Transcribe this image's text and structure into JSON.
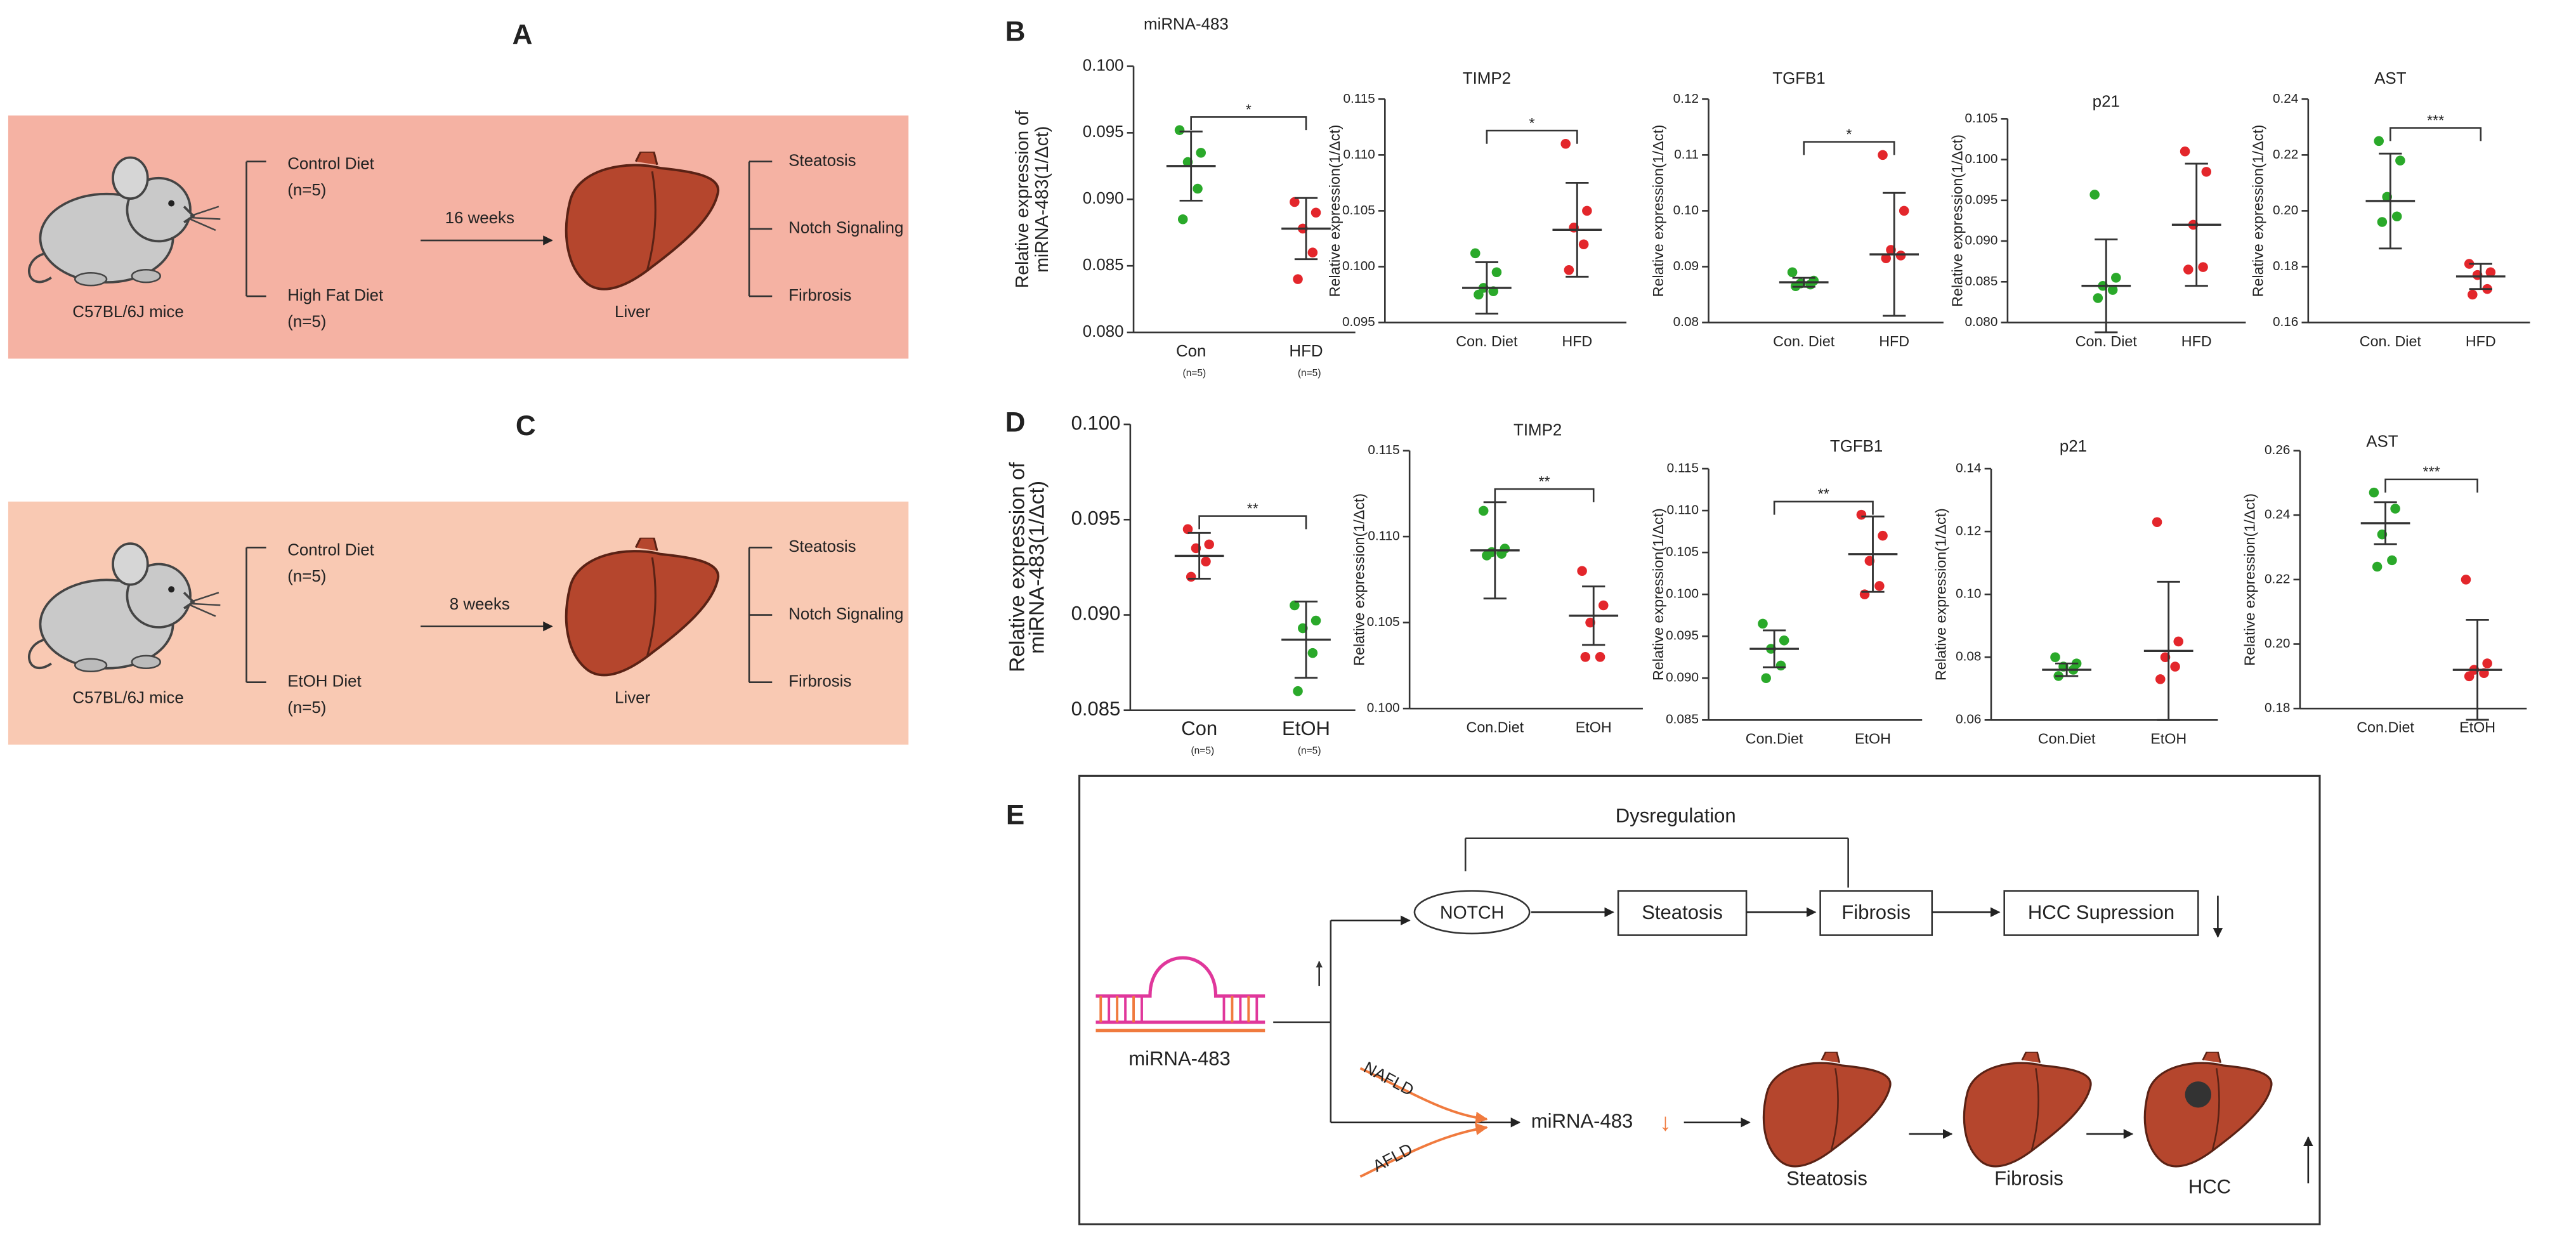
{
  "panel_labels": {
    "B": "B",
    "D": "D"
  },
  "panel_a": {
    "label": "A",
    "strain": "C57BL/6J mice",
    "groups": [
      {
        "diet": "Control Diet",
        "n": "(n=5)"
      },
      {
        "diet": "High Fat Diet",
        "n": "(n=5)"
      }
    ],
    "duration": "16 weeks",
    "organ": "Liver",
    "outcomes": [
      "Steatosis",
      "Notch Signaling",
      "Firbrosis"
    ]
  },
  "panel_c": {
    "label": "C",
    "strain": "C57BL/6J mice",
    "groups": [
      {
        "diet": "Control Diet",
        "n": "(n=5)"
      },
      {
        "diet": "EtOH Diet",
        "n": "(n=5)"
      }
    ],
    "duration": "8 weeks",
    "organ": "Liver",
    "outcomes": [
      "Steatosis",
      "Notch Signaling",
      "Firbrosis"
    ]
  },
  "panel_e": {
    "label": "E",
    "dysregulation": "Dysregulation",
    "notch": "NOTCH",
    "steps": [
      "Steatosis",
      "Fibrosis",
      "HCC Supression"
    ],
    "mirna": "miRNA-483",
    "nafld": "NAFLD",
    "afld": "AFLD",
    "mirna_down": "miRNA-483",
    "mirna_arrow": "↓",
    "stages": [
      "Steatosis",
      "Fibrosis",
      "HCC"
    ]
  },
  "chart_data": [
    {
      "type": "dot",
      "title": "miRNA-483",
      "ylabel": [
        "Relative expression of",
        "miRNA-483(1/Δct)"
      ],
      "categories": [
        "Con",
        "HFD"
      ],
      "category_notes": [
        "(n=5)",
        "(n=5)"
      ],
      "colors": [
        "#2aa92a",
        "#e3262b"
      ],
      "values": [
        [
          0.0952,
          0.0935,
          0.0928,
          0.0908,
          0.0885
        ],
        [
          0.0898,
          0.089,
          0.0878,
          0.086,
          0.084
        ]
      ],
      "mean": [
        0.0925,
        0.0878
      ],
      "sd": [
        0.0026,
        0.0023
      ],
      "significance": "*",
      "ylim": [
        0.08,
        0.1
      ],
      "yticks": [
        {
          "value": 0.08,
          "label": "0.080"
        },
        0.085,
        {
          "value": 0.09,
          "label": "0.090"
        },
        0.095,
        {
          "value": 0.1,
          "label": "0.100"
        }
      ]
    },
    {
      "type": "dot",
      "title": "TIMP2",
      "ylabel": [
        "Relative expression(1/Δct)"
      ],
      "categories": [
        "Con. Diet",
        "HFD"
      ],
      "colors": [
        "#2aa92a",
        "#e3262b"
      ],
      "values": [
        [
          0.1012,
          0.0995,
          0.0981,
          0.0978,
          0.0975
        ],
        [
          0.111,
          0.105,
          0.1035,
          0.102,
          0.0997
        ]
      ],
      "mean": [
        0.0981,
        0.1033
      ],
      "sd": [
        0.0023,
        0.0042
      ],
      "significance": "*",
      "ylim": [
        0.095,
        0.115
      ],
      "yticks": [
        0.095,
        {
          "value": 0.1,
          "label": "0.100"
        },
        0.105,
        {
          "value": 0.11,
          "label": "0.110"
        },
        0.115
      ]
    },
    {
      "type": "dot",
      "title": "TGFB1",
      "ylabel": [
        "Relative expression(1/Δct)"
      ],
      "categories": [
        "Con. Diet",
        "HFD"
      ],
      "colors": [
        "#2aa92a",
        "#e3262b"
      ],
      "values": [
        [
          0.089,
          0.0875,
          0.087,
          0.0868,
          0.0865
        ],
        [
          0.11,
          0.1,
          0.093,
          0.092,
          0.0915
        ]
      ],
      "mean": [
        0.0872,
        0.0922
      ],
      "sd": [
        0.0008,
        0.011
      ],
      "significance": "*",
      "ylim": [
        0.08,
        0.12
      ],
      "yticks": [
        0.08,
        0.09,
        {
          "value": 0.1,
          "label": "0.10"
        },
        0.11,
        0.12
      ]
    },
    {
      "type": "dot",
      "title": "p21",
      "ylabel": [
        "Relative expression(1/Δct)"
      ],
      "categories": [
        "Con. Diet",
        "HFD"
      ],
      "colors": [
        "#2aa92a",
        "#e3262b"
      ],
      "values": [
        [
          0.0957,
          0.0855,
          0.0845,
          0.084,
          0.083
        ],
        [
          0.101,
          0.0985,
          0.092,
          0.0868,
          0.0865
        ]
      ],
      "mean": [
        0.0845,
        0.092
      ],
      "sd": [
        0.0057,
        0.0075
      ],
      "ylim": [
        0.08,
        0.105
      ],
      "yticks": [
        {
          "value": 0.08,
          "label": "0.080"
        },
        0.085,
        {
          "value": 0.09,
          "label": "0.090"
        },
        0.095,
        {
          "value": 0.1,
          "label": "0.100"
        },
        0.105
      ]
    },
    {
      "type": "dot",
      "title": "AST",
      "ylabel": [
        "Relative expression(1/Δct)"
      ],
      "categories": [
        "Con. Diet",
        "HFD"
      ],
      "colors": [
        "#2aa92a",
        "#e3262b"
      ],
      "values": [
        [
          0.225,
          0.218,
          0.205,
          0.198,
          0.196
        ],
        [
          0.181,
          0.178,
          0.177,
          0.172,
          0.17
        ]
      ],
      "mean": [
        0.2035,
        0.1765
      ],
      "sd": [
        0.017,
        0.0045
      ],
      "significance": "***",
      "ylim": [
        0.16,
        0.24
      ],
      "yticks": [
        0.16,
        0.18,
        {
          "value": 0.2,
          "label": "0.20"
        },
        0.22,
        0.24
      ]
    },
    {
      "type": "dot",
      "ylabel": [
        "Relative expression of",
        "miRNA-483(1/Δct)"
      ],
      "categories": [
        "Con",
        "EtOH"
      ],
      "category_notes": [
        "(n=5)",
        "(n=5)"
      ],
      "colors": [
        "#e3262b",
        "#2aa92a"
      ],
      "values": [
        [
          0.0945,
          0.0937,
          0.0935,
          0.0928,
          0.092
        ],
        [
          0.0905,
          0.0897,
          0.0893,
          0.088,
          0.086
        ]
      ],
      "mean": [
        0.0931,
        0.0887
      ],
      "sd": [
        0.0012,
        0.002
      ],
      "significance": "**",
      "ylim": [
        0.085,
        0.1
      ],
      "yticks": [
        0.085,
        {
          "value": 0.09,
          "label": "0.090"
        },
        0.095,
        {
          "value": 0.1,
          "label": "0.100"
        }
      ]
    },
    {
      "type": "dot",
      "title": "TIMP2",
      "ylabel": [
        "Relative expression(1/Δct)"
      ],
      "categories": [
        "Con.Diet",
        "EtOH"
      ],
      "colors": [
        "#2aa92a",
        "#e3262b"
      ],
      "values": [
        [
          0.1115,
          0.1093,
          0.1091,
          0.109,
          0.1089
        ],
        [
          0.108,
          0.106,
          0.105,
          0.103,
          0.103
        ]
      ],
      "mean": [
        0.1092,
        0.1054
      ],
      "sd": [
        0.0028,
        0.0017
      ],
      "significance": "**",
      "ylim": [
        0.1,
        0.115
      ],
      "yticks": [
        {
          "value": 0.1,
          "label": "0.100"
        },
        0.105,
        {
          "value": 0.11,
          "label": "0.110"
        },
        0.115
      ]
    },
    {
      "type": "dot",
      "title": "TGFB1",
      "ylabel": [
        "Relative expression(1/Δct)"
      ],
      "categories": [
        "Con.Diet",
        "EtOH"
      ],
      "colors": [
        "#2aa92a",
        "#e3262b"
      ],
      "values": [
        [
          0.0965,
          0.0945,
          0.0935,
          0.0915,
          0.09
        ],
        [
          0.1095,
          0.107,
          0.104,
          0.101,
          0.1
        ]
      ],
      "mean": [
        0.0935,
        0.1048
      ],
      "sd": [
        0.0022,
        0.0045
      ],
      "significance": "**",
      "ylim": [
        0.085,
        0.115
      ],
      "yticks": [
        0.085,
        {
          "value": 0.09,
          "label": "0.090"
        },
        0.095,
        {
          "value": 0.1,
          "label": "0.100"
        },
        0.105,
        {
          "value": 0.11,
          "label": "0.110"
        },
        0.115
      ]
    },
    {
      "type": "dot",
      "title": "p21",
      "ylabel": [
        "Relative expression(1/Δct)"
      ],
      "categories": [
        "Con.Diet",
        "EtOH"
      ],
      "colors": [
        "#2aa92a",
        "#e3262b"
      ],
      "values": [
        [
          0.08,
          0.078,
          0.077,
          0.076,
          0.074
        ],
        [
          0.123,
          0.085,
          0.08,
          0.077,
          0.073
        ]
      ],
      "mean": [
        0.076,
        0.082
      ],
      "sd": [
        0.002,
        0.022
      ],
      "ylim": [
        0.06,
        0.14
      ],
      "yticks": [
        0.06,
        0.08,
        {
          "value": 0.1,
          "label": "0.10"
        },
        0.12,
        0.14
      ]
    },
    {
      "type": "dot",
      "title": "AST",
      "ylabel": [
        "Relative expression(1/Δct)"
      ],
      "categories": [
        "Con.Diet",
        "EtOH"
      ],
      "colors": [
        "#2aa92a",
        "#e3262b"
      ],
      "values": [
        [
          0.247,
          0.242,
          0.234,
          0.226,
          0.224
        ],
        [
          0.22,
          0.194,
          0.192,
          0.191,
          0.19
        ]
      ],
      "mean": [
        0.2375,
        0.192
      ],
      "sd": [
        0.0065,
        0.0155
      ],
      "significance": "***",
      "ylim": [
        0.18,
        0.26
      ],
      "yticks": [
        0.18,
        {
          "value": 0.2,
          "label": "0.20"
        },
        0.22,
        0.24,
        0.26
      ]
    }
  ]
}
